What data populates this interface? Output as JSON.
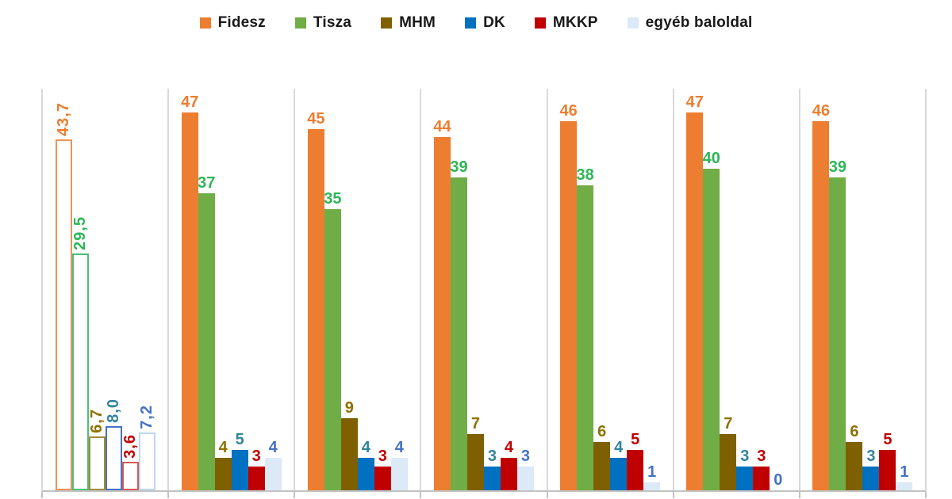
{
  "legend": {
    "items": [
      {
        "label": "Fidesz",
        "color": "#ED7D31"
      },
      {
        "label": "Tisza",
        "color": "#70AD47"
      },
      {
        "label": "MHM",
        "color": "#7F6000"
      },
      {
        "label": "DK",
        "color": "#0070C0"
      },
      {
        "label": "MKKP",
        "color": "#C00000"
      },
      {
        "label": "egyéb baloldal",
        "color": "#DCE9F7"
      }
    ]
  },
  "chart_data": {
    "type": "bar",
    "title": "",
    "xlabel": "",
    "ylabel": "",
    "ylim": [
      0,
      50
    ],
    "grid": "vertical-separators-only",
    "legend_position": "top-center",
    "num_groups": 7,
    "group_styles": [
      "outline",
      "solid",
      "solid",
      "solid",
      "solid",
      "solid",
      "solid"
    ],
    "series": [
      {
        "name": "Fidesz",
        "color": "#ED7D31",
        "outline_color": "#F19257",
        "label_color": "#ED7D31",
        "values": [
          43.7,
          47,
          45,
          44,
          46,
          47,
          46
        ],
        "labels": [
          "43,7",
          "47",
          "45",
          "44",
          "46",
          "47",
          "46"
        ]
      },
      {
        "name": "Tisza",
        "color": "#70AD47",
        "outline_color": "#4DBE7A",
        "label_color": "#2DB757",
        "values": [
          29.5,
          37,
          35,
          39,
          38,
          40,
          39
        ],
        "labels": [
          "29,5",
          "37",
          "35",
          "39",
          "38",
          "40",
          "39"
        ]
      },
      {
        "name": "MHM",
        "color": "#7F6000",
        "outline_color": "#A58A3A",
        "label_color": "#8E7000",
        "values": [
          6.7,
          4,
          9,
          7,
          6,
          7,
          6
        ],
        "labels": [
          "6,7",
          "4",
          "9",
          "7",
          "6",
          "7",
          "6"
        ]
      },
      {
        "name": "DK",
        "color": "#0070C0",
        "outline_color": "#4472C4",
        "label_color": "#31849B",
        "values": [
          8.0,
          5,
          4,
          3,
          4,
          3,
          3
        ],
        "labels": [
          "8,0",
          "5",
          "4",
          "3",
          "4",
          "3",
          "3"
        ]
      },
      {
        "name": "MKKP",
        "color": "#C00000",
        "outline_color": "#D45A5A",
        "label_color": "#C00000",
        "values": [
          3.6,
          3,
          3,
          4,
          5,
          3,
          5
        ],
        "labels": [
          "3,6",
          "3",
          "3",
          "4",
          "5",
          "3",
          "5"
        ]
      },
      {
        "name": "egyéb baloldal",
        "color": "#DCE9F7",
        "outline_color": "#BDD7EE",
        "label_color": "#4472C4",
        "values": [
          7.2,
          4,
          4,
          3,
          1,
          0,
          1
        ],
        "labels": [
          "7,2",
          "4",
          "4",
          "3",
          "1",
          "0",
          "1"
        ]
      }
    ]
  }
}
